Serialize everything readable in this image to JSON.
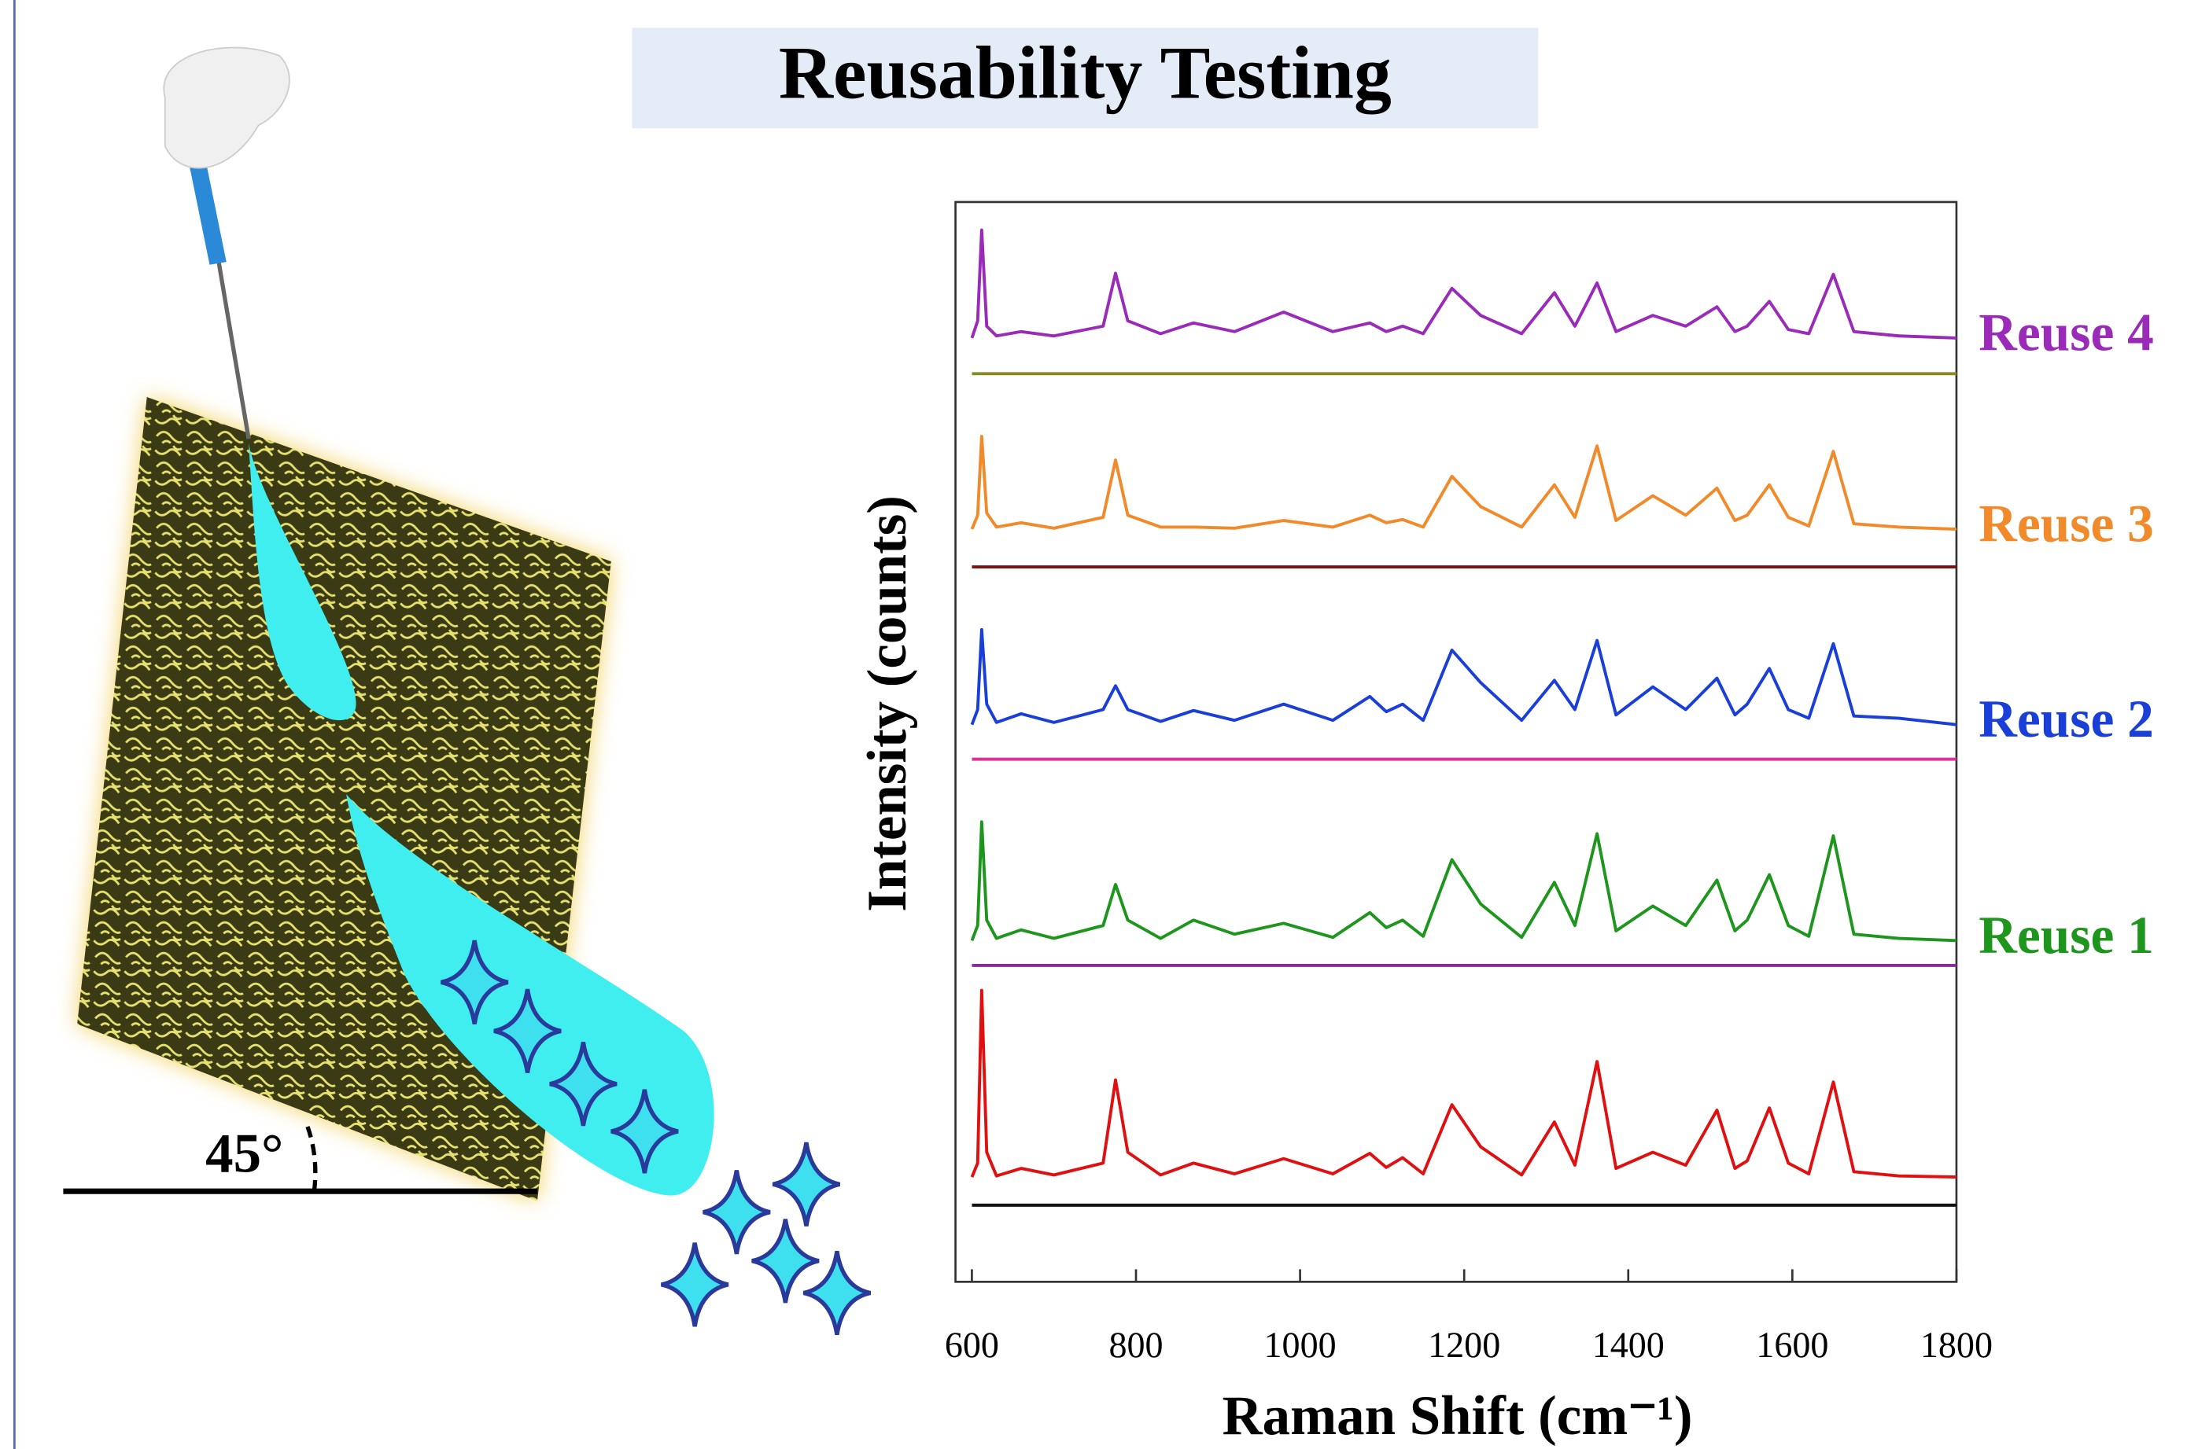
{
  "title": "Reusability Testing",
  "illustration": {
    "angle_label": "45°"
  },
  "chart_data": {
    "type": "line",
    "xlabel": "Raman Shift (cm⁻¹)",
    "ylabel": "Intensity (counts)",
    "xlim": [
      580,
      1800
    ],
    "xticks": [
      600,
      800,
      1000,
      1200,
      1400,
      1600,
      1800
    ],
    "ylim": [
      0,
      100
    ],
    "x": [
      600,
      607,
      612,
      618,
      630,
      660,
      700,
      760,
      775,
      790,
      830,
      870,
      920,
      980,
      1040,
      1085,
      1105,
      1125,
      1150,
      1185,
      1220,
      1270,
      1310,
      1335,
      1362,
      1385,
      1430,
      1470,
      1508,
      1530,
      1545,
      1572,
      1595,
      1620,
      1650,
      1675,
      1730,
      1800
    ],
    "series": [
      {
        "color": "#e01010",
        "values": [
          9.7,
          11,
          27,
          12,
          9.8,
          10.5,
          9.9,
          11,
          18.7,
          12,
          9.9,
          11,
          10,
          11.4,
          10,
          11.9,
          10.6,
          11.5,
          10,
          16.4,
          12.5,
          9.9,
          14.8,
          10.8,
          20.4,
          10.5,
          12,
          10.8,
          15.9,
          10.5,
          11.2,
          16.1,
          11,
          10,
          18.5,
          10.2,
          9.8,
          9.7
        ]
      },
      {
        "color": "#111111",
        "values": [
          7.1,
          7.1,
          7.1,
          7.1,
          7.1,
          7.1,
          7.1,
          7.1,
          7.1,
          7.1,
          7.1,
          7.1,
          7.1,
          7.1,
          7.1,
          7.1,
          7.1,
          7.1,
          7.1,
          7.1,
          7.1,
          7.1,
          7.1,
          7.1,
          7.1,
          7.1,
          7.1,
          7.1,
          7.1,
          7.1,
          7.1,
          7.1,
          7.1,
          7.1,
          7.1,
          7.1,
          7.1,
          7.1
        ]
      },
      {
        "name": "Reuse 1",
        "color": "#1e961e",
        "values": [
          31.6,
          33,
          42.6,
          33.5,
          31.8,
          32.6,
          31.8,
          33,
          36.8,
          33.5,
          31.8,
          33.5,
          32.2,
          33.2,
          31.9,
          34.2,
          32.8,
          33.5,
          32,
          39.1,
          35,
          31.9,
          37,
          33,
          41.5,
          32.5,
          34.8,
          33,
          37.2,
          32.5,
          33.5,
          37.7,
          33,
          32,
          41.3,
          32.2,
          31.8,
          31.6
        ]
      },
      {
        "color": "#8a2a9a",
        "values": [
          29.3,
          29.3,
          29.3,
          29.3,
          29.3,
          29.3,
          29.3,
          29.3,
          29.3,
          29.3,
          29.3,
          29.3,
          29.3,
          29.3,
          29.3,
          29.3,
          29.3,
          29.3,
          29.3,
          29.3,
          29.3,
          29.3,
          29.3,
          29.3,
          29.3,
          29.3,
          29.3,
          29.3,
          29.3,
          29.3,
          29.3,
          29.3,
          29.3,
          29.3,
          29.3,
          29.3,
          29.3,
          29.3
        ]
      },
      {
        "name": "Reuse 2",
        "color": "#1a3fd8",
        "values": [
          51.6,
          53,
          60.4,
          53.5,
          51.8,
          52.6,
          51.8,
          53,
          55.2,
          53,
          51.9,
          52.9,
          52,
          53.5,
          52,
          54.2,
          52.8,
          53.5,
          52,
          58.5,
          55.5,
          52,
          55.7,
          53,
          59.4,
          52.5,
          55.1,
          53,
          55.9,
          52.5,
          53.5,
          56.8,
          53,
          52.2,
          59.1,
          52.4,
          52.2,
          51.6
        ]
      },
      {
        "color": "#e0309a",
        "values": [
          48.4,
          48.4,
          48.4,
          48.4,
          48.4,
          48.4,
          48.4,
          48.4,
          48.4,
          48.4,
          48.4,
          48.4,
          48.4,
          48.4,
          48.4,
          48.4,
          48.4,
          48.4,
          48.4,
          48.4,
          48.4,
          48.4,
          48.4,
          48.4,
          48.4,
          48.4,
          48.4,
          48.4,
          48.4,
          48.4,
          48.4,
          48.4,
          48.4,
          48.4,
          48.4,
          48.4,
          48.4,
          48.4
        ]
      },
      {
        "name": "Reuse 3",
        "color": "#f08a2a",
        "values": [
          69.7,
          71,
          78.3,
          71.2,
          69.9,
          70.3,
          69.8,
          70.8,
          76.1,
          71,
          69.9,
          69.9,
          69.8,
          70.5,
          69.9,
          71,
          70.3,
          70.6,
          69.9,
          74.6,
          71.8,
          69.9,
          73.8,
          70.8,
          77.4,
          70.5,
          72.8,
          71,
          73.5,
          70.5,
          71,
          73.8,
          70.8,
          70,
          76.9,
          70.2,
          69.9,
          69.7
        ]
      },
      {
        "color": "#7a1010",
        "values": [
          66.2,
          66.2,
          66.2,
          66.2,
          66.2,
          66.2,
          66.2,
          66.2,
          66.2,
          66.2,
          66.2,
          66.2,
          66.2,
          66.2,
          66.2,
          66.2,
          66.2,
          66.2,
          66.2,
          66.2,
          66.2,
          66.2,
          66.2,
          66.2,
          66.2,
          66.2,
          66.2,
          66.2,
          66.2,
          66.2,
          66.2,
          66.2,
          66.2,
          66.2,
          66.2,
          66.2,
          66.2,
          66.2
        ]
      },
      {
        "name": "Reuse 4",
        "color": "#9a2ab8",
        "values": [
          87.4,
          89,
          97.4,
          88.5,
          87.6,
          88,
          87.6,
          88.5,
          93.4,
          89,
          87.8,
          88.8,
          88,
          89.8,
          88,
          88.8,
          88,
          88.5,
          87.8,
          92,
          89.5,
          87.8,
          91.6,
          88.5,
          92.5,
          88,
          89.5,
          88.5,
          90.3,
          88,
          88.5,
          90.8,
          88.2,
          87.8,
          93.3,
          88,
          87.6,
          87.4
        ]
      },
      {
        "color": "#8a8a20",
        "values": [
          84.1,
          84.1,
          84.1,
          84.1,
          84.1,
          84.1,
          84.1,
          84.1,
          84.1,
          84.1,
          84.1,
          84.1,
          84.1,
          84.1,
          84.1,
          84.1,
          84.1,
          84.1,
          84.1,
          84.1,
          84.1,
          84.1,
          84.1,
          84.1,
          84.1,
          84.1,
          84.1,
          84.1,
          84.1,
          84.1,
          84.1,
          84.1,
          84.1,
          84.1,
          84.1,
          84.1,
          84.1,
          84.1
        ]
      }
    ]
  }
}
